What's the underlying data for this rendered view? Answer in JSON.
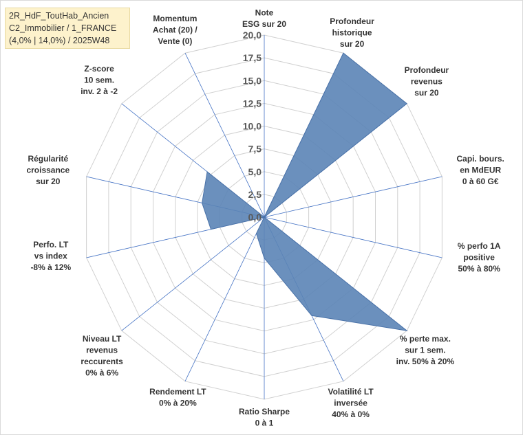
{
  "title": {
    "line1": "2R_HdF_ToutHab_Ancien",
    "line2": "C2_Immobilier / 1_FRANCE",
    "line3": "(4,0% | 14,0%) / 2025W48"
  },
  "colors": {
    "fill": "#5b84b6",
    "stroke": "#4a72a8",
    "grid": "#d0d0d0",
    "axis": "#4472c4"
  },
  "chart_data": {
    "type": "radar",
    "range": [
      0,
      20
    ],
    "tick_step": 2.5,
    "tick_labels": [
      "0,0",
      "2,5",
      "5,0",
      "7,5",
      "10,0",
      "12,5",
      "15,0",
      "17,5",
      "20,0"
    ],
    "axes": [
      {
        "label": [
          "Note",
          "ESG sur 20"
        ],
        "value": 0
      },
      {
        "label": [
          "Profondeur",
          "historique",
          "sur 20"
        ],
        "value": 20
      },
      {
        "label": [
          "Profondeur",
          "revenus",
          "sur 20"
        ],
        "value": 20
      },
      {
        "label": [
          "Capi. bours.",
          "en MdEUR",
          "0 à 60 G€"
        ],
        "value": 0
      },
      {
        "label": [
          "% perfo 1A",
          "positive",
          "50% à 80%"
        ],
        "value": 0
      },
      {
        "label": [
          "% perte max.",
          "sur 1 sem.",
          "inv. 50% à 20%"
        ],
        "value": 20
      },
      {
        "label": [
          "Volatilité LT",
          "inversée",
          "40% à 0%"
        ],
        "value": 12
      },
      {
        "label": [
          "Ratio Sharpe",
          "0 à 1"
        ],
        "value": 4.5
      },
      {
        "label": [
          "Rendement LT",
          "0% à 20%"
        ],
        "value": 2
      },
      {
        "label": [
          "Niveau LT",
          "revenus",
          "reccurents",
          "0% à 6%"
        ],
        "value": 0
      },
      {
        "label": [
          "Perfo. LT",
          "vs index",
          "-8% à 12%"
        ],
        "value": 6
      },
      {
        "label": [
          "Régularité",
          "croissance",
          "sur 20"
        ],
        "value": 7
      },
      {
        "label": [
          "Z-score",
          "10 sem.",
          "inv. 2 à -2"
        ],
        "value": 8
      },
      {
        "label": [
          "Momentum",
          "Achat (20) /",
          "Vente (0)"
        ],
        "value": 0
      }
    ]
  }
}
